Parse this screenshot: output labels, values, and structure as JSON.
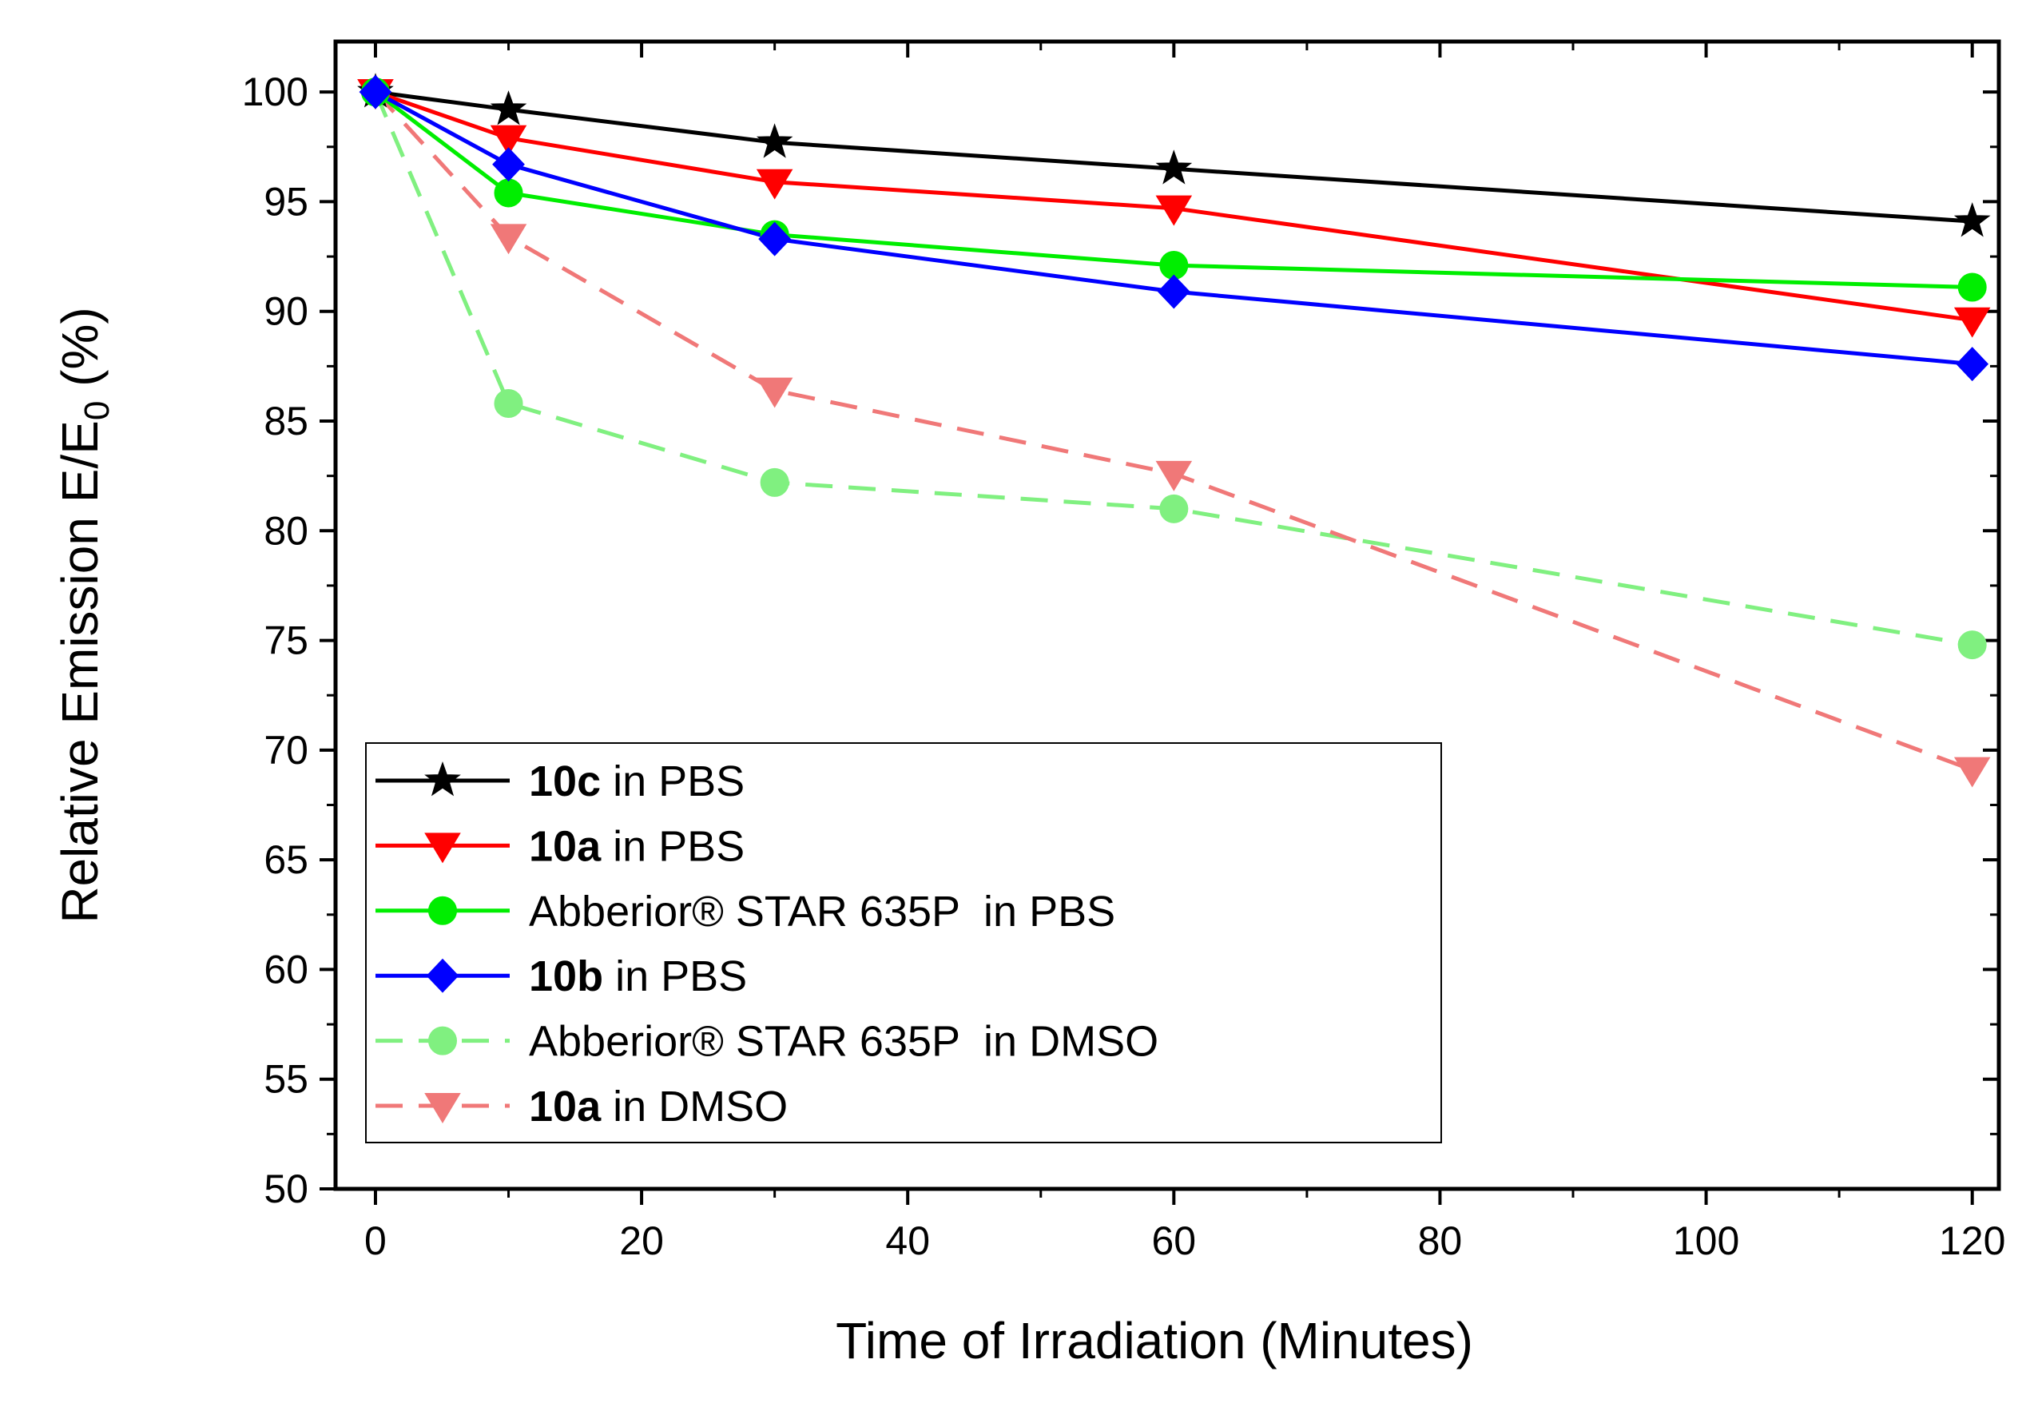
{
  "chart_data": {
    "type": "line",
    "title": "",
    "xlabel": "Time of Irradiation (Minutes)",
    "ylabel": {
      "main": "Relative Emission E/E",
      "sub": "0",
      "suffix": " (%)"
    },
    "xlim": [
      -3,
      122
    ],
    "ylim": [
      50,
      102.3
    ],
    "xticks": [
      0,
      20,
      40,
      60,
      80,
      100,
      120
    ],
    "yticks": [
      50,
      55,
      60,
      65,
      70,
      75,
      80,
      85,
      90,
      95,
      100
    ],
    "x": [
      0,
      10,
      30,
      60,
      120
    ],
    "series": [
      {
        "name_bold": "10c",
        "name_rest": " in PBS",
        "color": "#000000",
        "dash": "solid",
        "marker": "star",
        "values": [
          100,
          99.2,
          97.7,
          96.5,
          94.1
        ]
      },
      {
        "name_bold": "10a",
        "name_rest": " in PBS",
        "color": "#ff0000",
        "dash": "solid",
        "marker": "triangle-down",
        "values": [
          100,
          97.9,
          95.9,
          94.7,
          89.6
        ]
      },
      {
        "name_bold": "",
        "name_rest": "Abberior® STAR 635P  in PBS",
        "color": "#00ee00",
        "dash": "solid",
        "marker": "circle",
        "values": [
          100,
          95.4,
          93.5,
          92.1,
          91.1
        ]
      },
      {
        "name_bold": "10b",
        "name_rest": " in PBS",
        "color": "#0000ff",
        "dash": "solid",
        "marker": "diamond",
        "values": [
          100,
          96.7,
          93.3,
          90.9,
          87.6
        ]
      },
      {
        "name_bold": "",
        "name_rest": "Abberior® STAR 635P  in DMSO",
        "color": "#80f080",
        "dash": "dashed",
        "marker": "circle",
        "values": [
          100,
          85.8,
          82.2,
          81.0,
          74.8
        ]
      },
      {
        "name_bold": "10a",
        "name_rest": " in DMSO",
        "color": "#f07878",
        "dash": "dashed",
        "marker": "triangle-down",
        "values": [
          100,
          93.4,
          86.4,
          82.6,
          69.1
        ]
      }
    ],
    "grid": false,
    "legend_position": "bottom-left"
  }
}
